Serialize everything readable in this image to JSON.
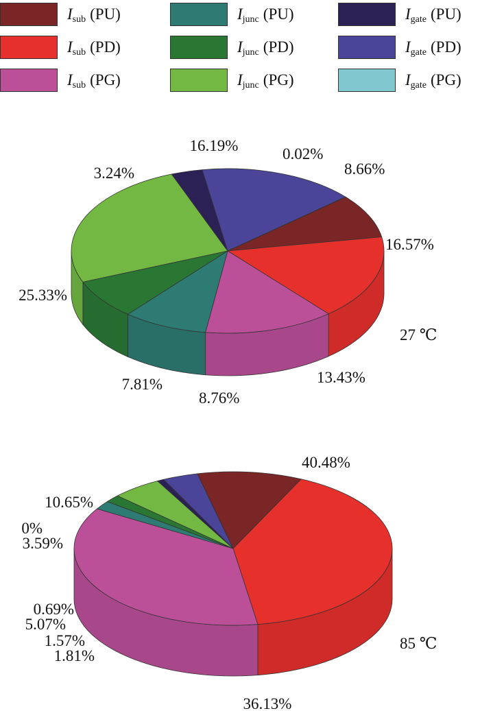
{
  "legend": {
    "items": [
      {
        "id": "isub-pu",
        "symbol": "I",
        "subscript": "sub",
        "suffix": "(PU)",
        "color": "#7a2626"
      },
      {
        "id": "isub-pd",
        "symbol": "I",
        "subscript": "sub",
        "suffix": "(PD)",
        "color": "#e6302c"
      },
      {
        "id": "isub-pg",
        "symbol": "I",
        "subscript": "sub",
        "suffix": "(PG)",
        "color": "#bb5099"
      },
      {
        "id": "ijunc-pu",
        "symbol": "I",
        "subscript": "junc",
        "suffix": "(PU)",
        "color": "#2e7b73"
      },
      {
        "id": "ijunc-pd",
        "symbol": "I",
        "subscript": "junc",
        "suffix": "(PD)",
        "color": "#2a7734"
      },
      {
        "id": "ijunc-pg",
        "symbol": "I",
        "subscript": "junc",
        "suffix": "(PG)",
        "color": "#72b843"
      },
      {
        "id": "igate-pu",
        "symbol": "I",
        "subscript": "gate",
        "suffix": "(PU)",
        "color": "#2c2155"
      },
      {
        "id": "igate-pd",
        "symbol": "I",
        "subscript": "gate",
        "suffix": "(PD)",
        "color": "#4a4598"
      },
      {
        "id": "igate-pg",
        "symbol": "I",
        "subscript": "gate",
        "suffix": "(PG)",
        "color": "#80c7cf"
      }
    ]
  },
  "chart_data": [
    {
      "type": "pie",
      "style": "3d",
      "annotation": "27 ℃",
      "slices": [
        {
          "series": "isub-pu",
          "value": 8.66,
          "label": "8.66%"
        },
        {
          "series": "isub-pd",
          "value": 16.57,
          "label": "16.57%"
        },
        {
          "series": "isub-pg",
          "value": 13.43,
          "label": "13.43%"
        },
        {
          "series": "ijunc-pu",
          "value": 8.76,
          "label": "8.76%"
        },
        {
          "series": "ijunc-pd",
          "value": 7.81,
          "label": "7.81%"
        },
        {
          "series": "ijunc-pg",
          "value": 25.33,
          "label": "25.33%"
        },
        {
          "series": "igate-pu",
          "value": 3.24,
          "label": "3.24%"
        },
        {
          "series": "igate-pd",
          "value": 16.19,
          "label": "16.19%"
        },
        {
          "series": "igate-pg",
          "value": 0.02,
          "label": "0.02%"
        }
      ]
    },
    {
      "type": "pie",
      "style": "3d",
      "annotation": "85 ℃",
      "slices": [
        {
          "series": "isub-pu",
          "value": 10.65,
          "label": "10.65%"
        },
        {
          "series": "isub-pd",
          "value": 40.48,
          "label": "40.48%"
        },
        {
          "series": "isub-pg",
          "value": 36.13,
          "label": "36.13%"
        },
        {
          "series": "ijunc-pu",
          "value": 1.81,
          "label": "1.81%"
        },
        {
          "series": "ijunc-pd",
          "value": 1.57,
          "label": "1.57%"
        },
        {
          "series": "ijunc-pg",
          "value": 5.07,
          "label": "5.07%"
        },
        {
          "series": "igate-pu",
          "value": 0.69,
          "label": "0.69%"
        },
        {
          "series": "igate-pd",
          "value": 3.59,
          "label": "3.59%"
        },
        {
          "series": "igate-pg",
          "value": 0,
          "label": "0%"
        }
      ]
    }
  ]
}
